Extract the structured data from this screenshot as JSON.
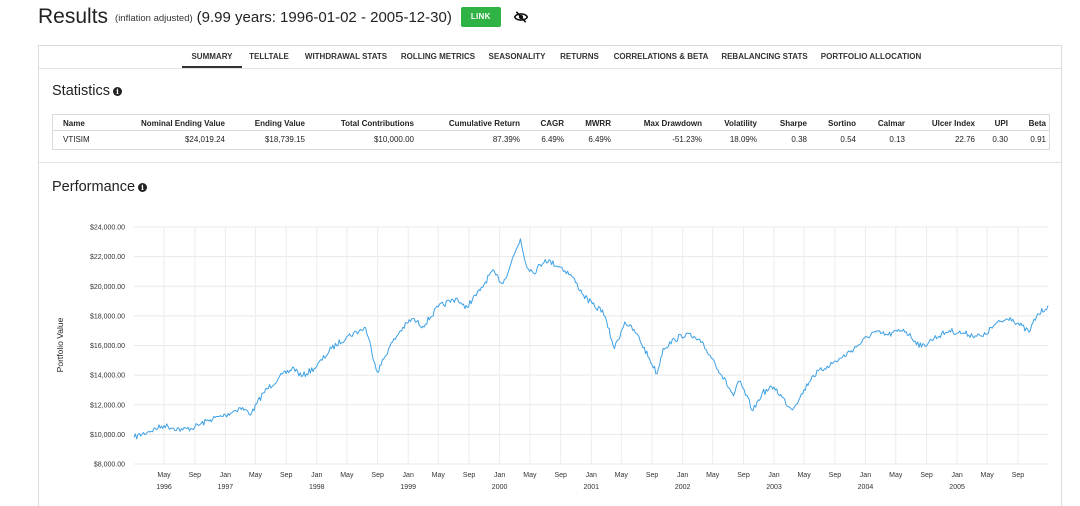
{
  "header": {
    "title": "Results",
    "subtitle": "(inflation adjusted)",
    "range": "(9.99 years: 1996-01-02 - 2005-12-30)",
    "link_label": "LINK"
  },
  "tabs": [
    {
      "label": "SUMMARY",
      "active": true
    },
    {
      "label": "TELLTALE",
      "active": false
    },
    {
      "label": "WITHDRAWAL STATS",
      "active": false
    },
    {
      "label": "ROLLING METRICS",
      "active": false
    },
    {
      "label": "SEASONALITY",
      "active": false
    },
    {
      "label": "RETURNS",
      "active": false
    },
    {
      "label": "CORRELATIONS & BETA",
      "active": false
    },
    {
      "label": "REBALANCING STATS",
      "active": false
    },
    {
      "label": "PORTFOLIO ALLOCATION",
      "active": false
    }
  ],
  "statistics": {
    "title": "Statistics",
    "headers": [
      "Name",
      "Nominal Ending Value",
      "Ending Value",
      "Total Contributions",
      "Cumulative Return",
      "CAGR",
      "MWRR",
      "Max Drawdown",
      "Volatility",
      "Sharpe",
      "Sortino",
      "Calmar",
      "Ulcer Index",
      "UPI",
      "Beta"
    ],
    "row": [
      "VTISIM",
      "$24,019.24",
      "$18,739.15",
      "$10,000.00",
      "87.39%",
      "6.49%",
      "6.49%",
      "-51.23%",
      "18.09%",
      "0.38",
      "0.54",
      "0.13",
      "22.76",
      "0.30",
      "0.91"
    ]
  },
  "performance": {
    "title": "Performance"
  },
  "chart_data": {
    "type": "line",
    "title": "Performance",
    "ylabel": "Portfolio Value",
    "xlabel": "",
    "ylim": [
      8000,
      24000
    ],
    "xlim": [
      "1996-01-02",
      "2005-12-30"
    ],
    "y_ticks": [
      "$8,000.00",
      "$10,000.00",
      "$12,000.00",
      "$14,000.00",
      "$16,000.00",
      "$18,000.00",
      "$20,000.00",
      "$22,000.00",
      "$24,000.00"
    ],
    "x_ticks": [
      {
        "label": "May",
        "sub": "1996"
      },
      {
        "label": "Sep",
        "sub": ""
      },
      {
        "label": "Jan",
        "sub": "1997"
      },
      {
        "label": "May",
        "sub": ""
      },
      {
        "label": "Sep",
        "sub": ""
      },
      {
        "label": "Jan",
        "sub": "1998"
      },
      {
        "label": "May",
        "sub": ""
      },
      {
        "label": "Sep",
        "sub": ""
      },
      {
        "label": "Jan",
        "sub": "1999"
      },
      {
        "label": "May",
        "sub": ""
      },
      {
        "label": "Sep",
        "sub": ""
      },
      {
        "label": "Jan",
        "sub": "2000"
      },
      {
        "label": "May",
        "sub": ""
      },
      {
        "label": "Sep",
        "sub": ""
      },
      {
        "label": "Jan",
        "sub": "2001"
      },
      {
        "label": "May",
        "sub": ""
      },
      {
        "label": "Sep",
        "sub": ""
      },
      {
        "label": "Jan",
        "sub": "2002"
      },
      {
        "label": "May",
        "sub": ""
      },
      {
        "label": "Sep",
        "sub": ""
      },
      {
        "label": "Jan",
        "sub": "2003"
      },
      {
        "label": "May",
        "sub": ""
      },
      {
        "label": "Sep",
        "sub": ""
      },
      {
        "label": "Jan",
        "sub": "2004"
      },
      {
        "label": "May",
        "sub": ""
      },
      {
        "label": "Sep",
        "sub": ""
      },
      {
        "label": "Jan",
        "sub": "2005"
      },
      {
        "label": "May",
        "sub": ""
      },
      {
        "label": "Sep",
        "sub": ""
      }
    ],
    "grid": true,
    "series": [
      {
        "color": "#3ea1e6",
        "x": [
          "1996-01-02",
          "1996-03-01",
          "1996-05-01",
          "1996-07-15",
          "1996-09-01",
          "1996-11-01",
          "1997-01-01",
          "1997-03-01",
          "1997-04-15",
          "1997-06-01",
          "1997-08-01",
          "1997-10-01",
          "1997-11-01",
          "1998-01-01",
          "1998-03-01",
          "1998-05-01",
          "1998-07-15",
          "1998-08-31",
          "1998-10-15",
          "1998-12-01",
          "1999-01-15",
          "1999-03-01",
          "1999-05-01",
          "1999-07-15",
          "1999-08-15",
          "1999-10-15",
          "1999-12-01",
          "2000-01-15",
          "2000-03-24",
          "2000-04-15",
          "2000-05-15",
          "2000-07-01",
          "2000-09-01",
          "2000-10-15",
          "2000-12-01",
          "2001-01-15",
          "2001-02-15",
          "2001-04-04",
          "2001-05-15",
          "2001-07-01",
          "2001-09-21",
          "2001-10-15",
          "2001-12-01",
          "2002-01-15",
          "2002-03-15",
          "2002-05-01",
          "2002-07-23",
          "2002-08-15",
          "2002-10-09",
          "2002-11-15",
          "2003-01-01",
          "2003-03-11",
          "2003-04-15",
          "2003-06-01",
          "2003-08-01",
          "2003-10-01",
          "2003-12-01",
          "2004-02-01",
          "2004-04-01",
          "2004-06-01",
          "2004-08-12",
          "2004-10-01",
          "2004-12-01",
          "2005-02-01",
          "2005-04-15",
          "2005-06-01",
          "2005-08-01",
          "2005-10-15",
          "2005-11-15",
          "2005-12-30"
        ],
        "y": [
          9800,
          10200,
          10600,
          10300,
          10500,
          11000,
          11300,
          11800,
          11400,
          12800,
          13800,
          14500,
          13900,
          14600,
          15800,
          16600,
          17200,
          14200,
          15800,
          17000,
          17800,
          17300,
          18600,
          19200,
          18500,
          19700,
          21000,
          20200,
          23200,
          21500,
          20900,
          21800,
          21300,
          20700,
          19400,
          18600,
          18400,
          15800,
          17600,
          16800,
          14100,
          15800,
          16400,
          16800,
          16200,
          15100,
          12600,
          13600,
          11600,
          12800,
          13200,
          11700,
          12500,
          13900,
          14600,
          15200,
          16000,
          16900,
          16700,
          17100,
          15900,
          16500,
          17000,
          16800,
          16600,
          17400,
          17900,
          16900,
          18000,
          18700
        ]
      }
    ]
  }
}
